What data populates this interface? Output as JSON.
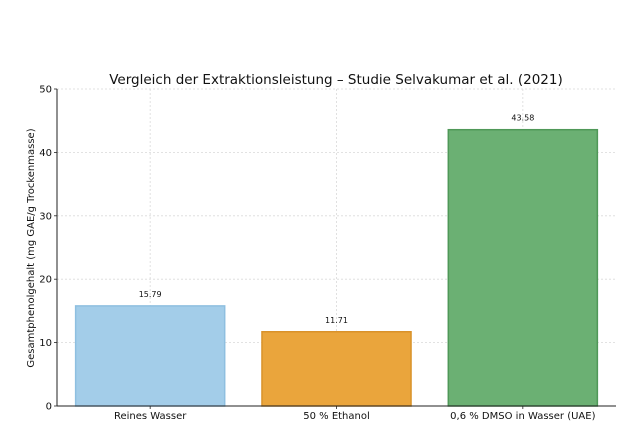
{
  "chart_data": {
    "type": "bar",
    "title": "Vergleich der Extraktionsleistung – Studie Selvakumar et al. (2021)",
    "xlabel": "",
    "ylabel": "Gesamtphenolgehalt (mg GAE/g Trockenmasse)",
    "categories": [
      "Reines Wasser",
      "50 % Ethanol",
      "0,6 % DMSO in Wasser (UAE)"
    ],
    "values": [
      15.79,
      11.71,
      43.58
    ],
    "value_labels": [
      "15.79",
      "11.71",
      "43.58"
    ],
    "colors": [
      "#a3cde9",
      "#eaa53c",
      "#6bb073"
    ],
    "edge_colors": [
      "#8ebfe0",
      "#d9922a",
      "#4f9858"
    ],
    "ylim": [
      0,
      50
    ],
    "yticks": [
      0,
      10,
      20,
      30,
      40,
      50
    ],
    "grid": true,
    "legend": "none"
  }
}
